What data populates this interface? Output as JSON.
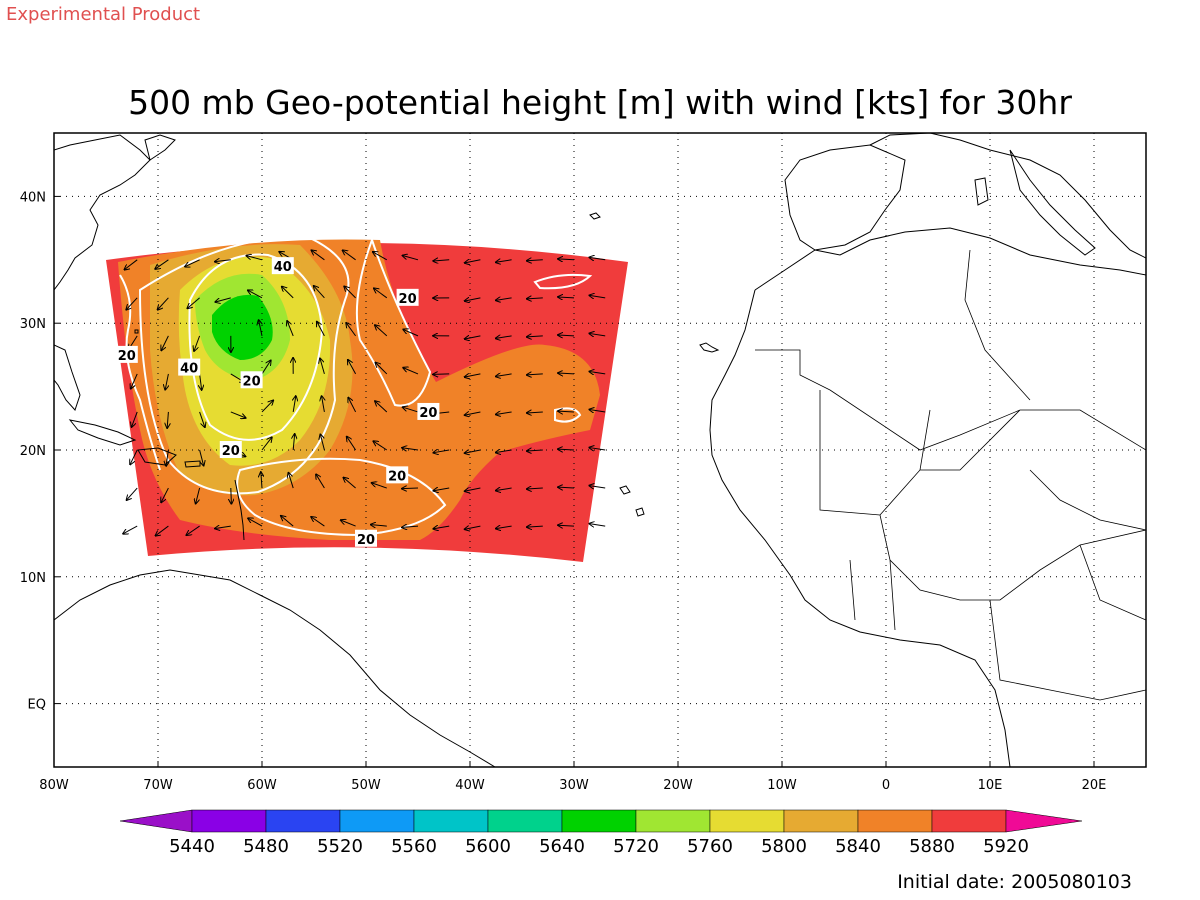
{
  "header": {
    "product_label": "Experimental Product",
    "title": "500 mb Geo-potential height [m] with wind [kts] for 30hr"
  },
  "footer": {
    "initial_date": "Initial date: 2005080103"
  },
  "map": {
    "lon_range": [
      -80,
      25
    ],
    "lat_range": [
      -5,
      45
    ],
    "x_ticks": [
      {
        "lon": -80,
        "label": "80W"
      },
      {
        "lon": -70,
        "label": "70W"
      },
      {
        "lon": -60,
        "label": "60W"
      },
      {
        "lon": -50,
        "label": "50W"
      },
      {
        "lon": -40,
        "label": "40W"
      },
      {
        "lon": -30,
        "label": "30W"
      },
      {
        "lon": -20,
        "label": "20W"
      },
      {
        "lon": -10,
        "label": "10W"
      },
      {
        "lon": 0,
        "label": "0"
      },
      {
        "lon": 10,
        "label": "10E"
      },
      {
        "lon": 20,
        "label": "20E"
      }
    ],
    "y_ticks": [
      {
        "lat": 0,
        "label": "EQ"
      },
      {
        "lat": 10,
        "label": "10N"
      },
      {
        "lat": 20,
        "label": "20N"
      },
      {
        "lat": 30,
        "label": "30N"
      },
      {
        "lat": 40,
        "label": "40N"
      }
    ],
    "grid": "dotted",
    "domain_corners": {
      "lon": [
        -75,
        -25
      ],
      "lat": [
        12,
        37
      ]
    },
    "low_center": {
      "lon": -62,
      "lat": 29.5
    },
    "wind_speed_labels": [
      {
        "lon": -58,
        "lat": 34.5,
        "text": "40"
      },
      {
        "lon": -46,
        "lat": 32.0,
        "text": "20"
      },
      {
        "lon": -73,
        "lat": 27.5,
        "text": "20"
      },
      {
        "lon": -67,
        "lat": 26.5,
        "text": "40"
      },
      {
        "lon": -61,
        "lat": 25.5,
        "text": "20"
      },
      {
        "lon": -44,
        "lat": 23.0,
        "text": "20"
      },
      {
        "lon": -63,
        "lat": 20.0,
        "text": "20"
      },
      {
        "lon": -47,
        "lat": 18.0,
        "text": "20"
      },
      {
        "lon": -50,
        "lat": 13.0,
        "text": "20"
      }
    ]
  },
  "colorbar": {
    "labels": [
      "5440",
      "5480",
      "5520",
      "5560",
      "5600",
      "5640",
      "5720",
      "5760",
      "5800",
      "5840",
      "5880",
      "5920"
    ],
    "colors": [
      "#9a10c8",
      "#8a00e6",
      "#2a44f2",
      "#0e9af6",
      "#00c4c8",
      "#00d28c",
      "#00d200",
      "#a0e632",
      "#e6dc32",
      "#e6aa32",
      "#f08228",
      "#f03c3c",
      "#f00a96"
    ],
    "extend": "both"
  },
  "colors": {
    "text": "#000000",
    "product_label": "#e05050",
    "contour": "#ffffff",
    "coast": "#000000"
  },
  "icons": {
    "wind_vector": "arrow-icon"
  }
}
